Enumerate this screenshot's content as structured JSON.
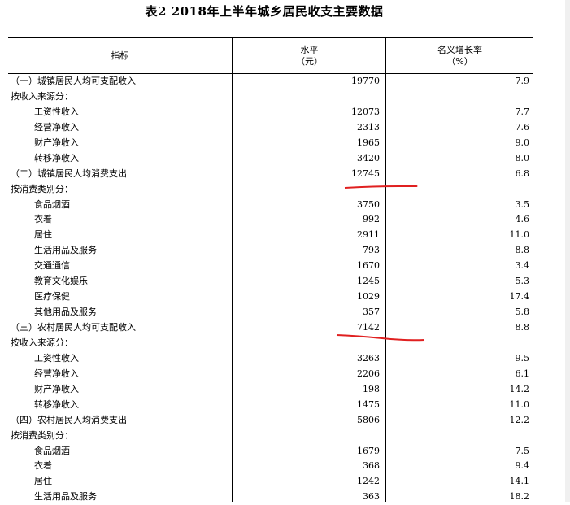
{
  "title": "表2    2018年上半年城乡居民收支主要数据",
  "header": {
    "indicator": "指标",
    "level_line1": "水平",
    "level_line2": "（元）",
    "growth_line1": "名义增长率",
    "growth_line2": "（%）"
  },
  "rows": [
    {
      "label": "（一）城镇居民人均可支配收入",
      "value": "19770",
      "rate": "7.9",
      "indent": false
    },
    {
      "label": "按收入来源分：",
      "value": "",
      "rate": "",
      "indent": false
    },
    {
      "label": "工资性收入",
      "value": "12073",
      "rate": "7.7",
      "indent": true
    },
    {
      "label": "经营净收入",
      "value": "2313",
      "rate": "7.6",
      "indent": true
    },
    {
      "label": "财产净收入",
      "value": "1965",
      "rate": "9.0",
      "indent": true
    },
    {
      "label": "转移净收入",
      "value": "3420",
      "rate": "8.0",
      "indent": true
    },
    {
      "label": "（二）城镇居民人均消费支出",
      "value": "12745",
      "rate": "6.8",
      "indent": false
    },
    {
      "label": "按消费类别分：",
      "value": "",
      "rate": "",
      "indent": false
    },
    {
      "label": "食品烟酒",
      "value": "3750",
      "rate": "3.5",
      "indent": true
    },
    {
      "label": "衣着",
      "value": "992",
      "rate": "4.6",
      "indent": true
    },
    {
      "label": "居住",
      "value": "2911",
      "rate": "11.0",
      "indent": true
    },
    {
      "label": "生活用品及服务",
      "value": "793",
      "rate": "8.8",
      "indent": true
    },
    {
      "label": "交通通信",
      "value": "1670",
      "rate": "3.4",
      "indent": true
    },
    {
      "label": "教育文化娱乐",
      "value": "1245",
      "rate": "5.3",
      "indent": true
    },
    {
      "label": "医疗保健",
      "value": "1029",
      "rate": "17.4",
      "indent": true
    },
    {
      "label": "其他用品及服务",
      "value": "357",
      "rate": "5.8",
      "indent": true
    },
    {
      "label": "（三）农村居民人均可支配收入",
      "value": "7142",
      "rate": "8.8",
      "indent": false
    },
    {
      "label": "按收入来源分：",
      "value": "",
      "rate": "",
      "indent": false
    },
    {
      "label": "工资性收入",
      "value": "3263",
      "rate": "9.5",
      "indent": true
    },
    {
      "label": "经营净收入",
      "value": "2206",
      "rate": "6.1",
      "indent": true
    },
    {
      "label": "财产净收入",
      "value": "198",
      "rate": "14.2",
      "indent": true
    },
    {
      "label": "转移净收入",
      "value": "1475",
      "rate": "11.0",
      "indent": true
    },
    {
      "label": "（四）农村居民人均消费支出",
      "value": "5806",
      "rate": "12.2",
      "indent": false
    },
    {
      "label": "按消费类别分：",
      "value": "",
      "rate": "",
      "indent": false
    },
    {
      "label": "食品烟酒",
      "value": "1679",
      "rate": "7.5",
      "indent": true
    },
    {
      "label": "衣着",
      "value": "368",
      "rate": "9.4",
      "indent": true
    },
    {
      "label": "居住",
      "value": "1242",
      "rate": "14.1",
      "indent": true
    },
    {
      "label": "生活用品及服务",
      "value": "363",
      "rate": "18.2",
      "indent": true
    }
  ],
  "annotation_color": "#e02020"
}
